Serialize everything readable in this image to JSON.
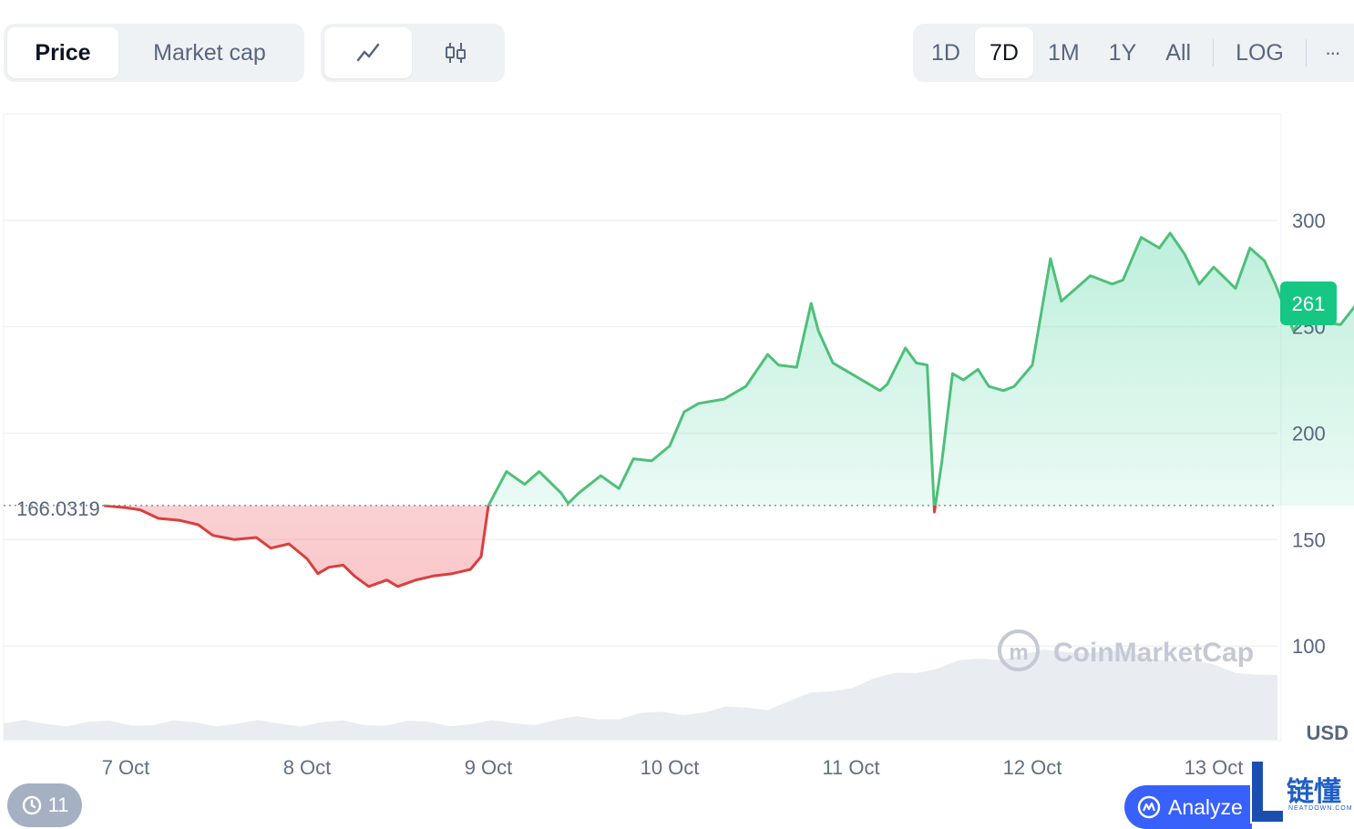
{
  "toolbar": {
    "metric_tabs": [
      {
        "label": "Price",
        "active": true
      },
      {
        "label": "Market cap",
        "active": false
      }
    ],
    "chart_types": [
      {
        "icon": "line-chart-icon",
        "active": true
      },
      {
        "icon": "candlestick-icon",
        "active": false
      }
    ],
    "ranges": [
      {
        "label": "1D",
        "active": false
      },
      {
        "label": "7D",
        "active": true
      },
      {
        "label": "1M",
        "active": false
      },
      {
        "label": "1Y",
        "active": false
      },
      {
        "label": "All",
        "active": false
      }
    ],
    "log_label": "LOG",
    "more_label": "···"
  },
  "chart_data": {
    "type": "area",
    "currency_label": "USD",
    "x_tick_labels": [
      "7 Oct",
      "8 Oct",
      "9 Oct",
      "10 Oct",
      "11 Oct",
      "12 Oct",
      "13 Oct"
    ],
    "y_ticks": [
      100,
      150,
      200,
      250,
      300
    ],
    "ylim": [
      56,
      350
    ],
    "baseline_value": 166.0319,
    "baseline_label": "166.0319",
    "current_price_label": "261",
    "colors": {
      "up": "#16c784",
      "down": "#ea3943",
      "line_up": "#4fbf7a",
      "line_down": "#d9403f",
      "grid": "#eff2f5",
      "volume": "#e7eaef"
    },
    "watermark": "CoinMarketCap",
    "series": [
      {
        "values_by_day_x": [
          [
            6.88,
            166
          ],
          [
            7.0,
            165
          ],
          [
            7.08,
            164
          ],
          [
            7.18,
            160
          ],
          [
            7.3,
            159
          ],
          [
            7.4,
            157
          ],
          [
            7.48,
            152
          ],
          [
            7.6,
            150
          ],
          [
            7.72,
            151
          ],
          [
            7.8,
            146
          ],
          [
            7.9,
            148
          ],
          [
            8.0,
            141
          ],
          [
            8.06,
            134
          ],
          [
            8.12,
            137
          ],
          [
            8.2,
            138
          ],
          [
            8.26,
            133
          ],
          [
            8.34,
            128
          ],
          [
            8.44,
            131
          ],
          [
            8.5,
            128
          ],
          [
            8.6,
            131
          ],
          [
            8.7,
            133
          ],
          [
            8.8,
            134
          ],
          [
            8.9,
            136
          ],
          [
            8.96,
            142
          ],
          [
            9.0,
            166
          ],
          [
            9.1,
            182
          ],
          [
            9.2,
            176
          ],
          [
            9.28,
            182
          ],
          [
            9.4,
            172
          ],
          [
            9.44,
            167
          ],
          [
            9.5,
            172
          ],
          [
            9.62,
            180
          ],
          [
            9.72,
            174
          ],
          [
            9.8,
            188
          ],
          [
            9.9,
            187
          ],
          [
            10.0,
            194
          ],
          [
            10.08,
            210
          ],
          [
            10.16,
            214
          ],
          [
            10.3,
            216
          ],
          [
            10.36,
            219
          ],
          [
            10.42,
            222
          ],
          [
            10.54,
            237
          ],
          [
            10.6,
            232
          ],
          [
            10.7,
            231
          ],
          [
            10.78,
            261
          ],
          [
            10.82,
            248
          ],
          [
            10.9,
            233
          ],
          [
            11.0,
            228
          ],
          [
            11.1,
            223
          ],
          [
            11.16,
            220
          ],
          [
            11.2,
            223
          ],
          [
            11.3,
            240
          ],
          [
            11.36,
            233
          ],
          [
            11.42,
            232
          ],
          [
            11.46,
            163
          ],
          [
            11.5,
            186
          ],
          [
            11.56,
            228
          ],
          [
            11.62,
            225
          ],
          [
            11.7,
            230
          ],
          [
            11.76,
            222
          ],
          [
            11.84,
            220
          ],
          [
            11.9,
            222
          ],
          [
            12.0,
            232
          ],
          [
            12.1,
            282
          ],
          [
            12.16,
            262
          ],
          [
            12.24,
            268
          ],
          [
            12.32,
            274
          ],
          [
            12.44,
            270
          ],
          [
            12.5,
            272
          ],
          [
            12.6,
            292
          ],
          [
            12.7,
            287
          ],
          [
            12.76,
            294
          ],
          [
            12.84,
            284
          ],
          [
            12.92,
            270
          ],
          [
            13.0,
            278
          ],
          [
            13.12,
            268
          ],
          [
            13.2,
            287
          ],
          [
            13.28,
            281
          ],
          [
            13.34,
            270
          ],
          [
            13.44,
            248
          ],
          [
            13.52,
            259
          ],
          [
            13.6,
            252
          ],
          [
            13.7,
            251
          ],
          [
            13.8,
            262
          ],
          [
            13.9,
            260
          ],
          [
            14.0,
            264
          ],
          [
            14.06,
            261
          ]
        ]
      }
    ]
  },
  "bottom": {
    "history_count": "11",
    "analyze_label": "Analyze",
    "brand_text": "链懂",
    "brand_sub": "NEATDOWN.COM"
  }
}
